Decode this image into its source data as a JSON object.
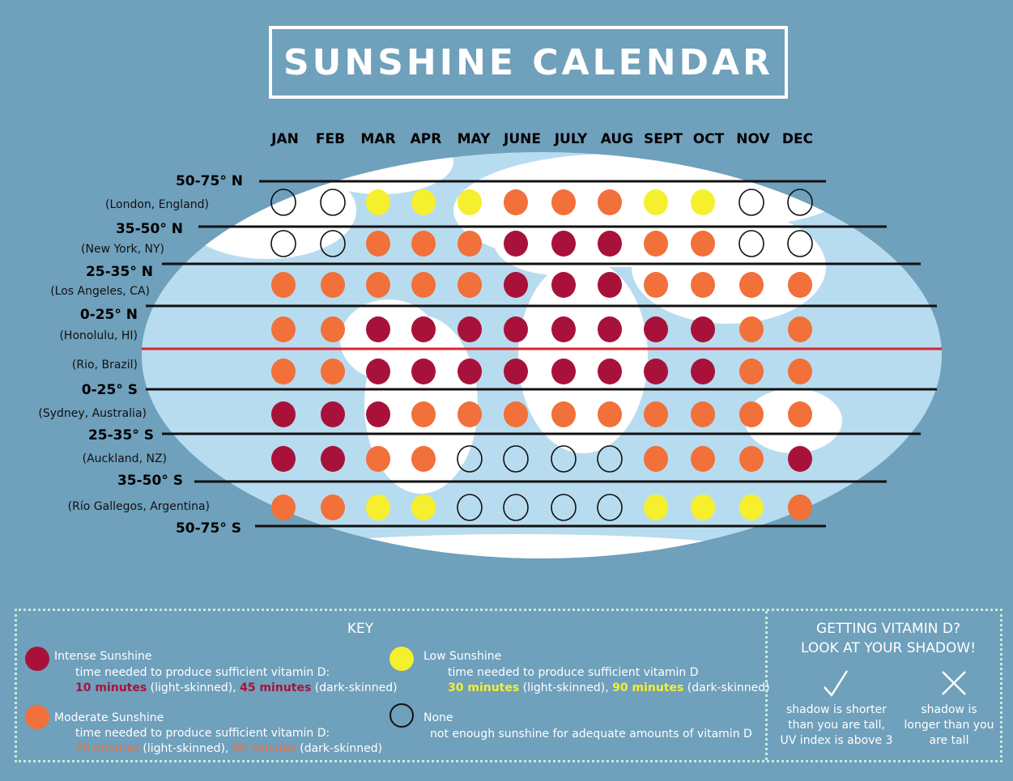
{
  "title": "SUNSHINE CALENDAR",
  "colors": {
    "intense": "#a8123a",
    "moderate": "#f2703a",
    "low": "#f6ef2e",
    "none": "none",
    "background": "#6fa0bc",
    "ocean": "#b8dcef",
    "equator": "#d9232e"
  },
  "chart_data": {
    "type": "heatmap",
    "title": "SUNSHINE CALENDAR",
    "columns": [
      "JAN",
      "FEB",
      "MAR",
      "APR",
      "MAY",
      "JUNE",
      "JULY",
      "AUG",
      "SEPT",
      "OCT",
      "NOV",
      "DEC"
    ],
    "band_labels": [
      "50-75° N",
      "35-50° N",
      "25-35° N",
      "0-25° N",
      "0-25° S",
      "25-35° S",
      "35-50° S",
      "50-75° S"
    ],
    "rows": [
      {
        "city": "(London, England)",
        "values": [
          "none",
          "none",
          "low",
          "low",
          "low",
          "moderate",
          "moderate",
          "moderate",
          "low",
          "low",
          "none",
          "none"
        ]
      },
      {
        "city": "(New York, NY)",
        "values": [
          "none",
          "none",
          "moderate",
          "moderate",
          "moderate",
          "intense",
          "intense",
          "intense",
          "moderate",
          "moderate",
          "none",
          "none"
        ]
      },
      {
        "city": "(Los Angeles, CA)",
        "values": [
          "moderate",
          "moderate",
          "moderate",
          "moderate",
          "moderate",
          "intense",
          "intense",
          "intense",
          "moderate",
          "moderate",
          "moderate",
          "moderate"
        ]
      },
      {
        "city": "(Honolulu, HI)",
        "values": [
          "moderate",
          "moderate",
          "intense",
          "intense",
          "intense",
          "intense",
          "intense",
          "intense",
          "intense",
          "intense",
          "moderate",
          "moderate"
        ]
      },
      {
        "city": "(Rio, Brazil)",
        "values": [
          "moderate",
          "moderate",
          "intense",
          "intense",
          "intense",
          "intense",
          "intense",
          "intense",
          "intense",
          "intense",
          "moderate",
          "moderate"
        ]
      },
      {
        "city": "(Sydney, Australia)",
        "values": [
          "intense",
          "intense",
          "intense",
          "moderate",
          "moderate",
          "moderate",
          "moderate",
          "moderate",
          "moderate",
          "moderate",
          "moderate",
          "moderate"
        ]
      },
      {
        "city": "(Auckland, NZ)",
        "values": [
          "intense",
          "intense",
          "moderate",
          "moderate",
          "none",
          "none",
          "none",
          "none",
          "moderate",
          "moderate",
          "moderate",
          "intense"
        ]
      },
      {
        "city": "(Río Gallegos, Argentina)",
        "values": [
          "moderate",
          "moderate",
          "low",
          "low",
          "none",
          "none",
          "none",
          "none",
          "low",
          "low",
          "low",
          "moderate"
        ]
      }
    ]
  },
  "key": {
    "heading": "KEY",
    "intense": {
      "label": "Intense Sunshine",
      "desc": "time needed to produce sufficient vitamin D:",
      "t1": "10 minutes",
      "m1": " (light-skinned), ",
      "t2": "45 minutes",
      "m2": " (dark-skinned)"
    },
    "moderate": {
      "label": "Moderate Sunshine",
      "desc": "time needed to produce sufficient vitamin D:",
      "t1": "20 minutes",
      "m1": " (light-skinned), ",
      "t2": "60 minutes",
      "m2": " (dark-skinned)"
    },
    "low": {
      "label": "Low Sunshine",
      "desc": "time needed to produce sufficient vitamin D",
      "t1": "30 minutes",
      "m1": " (light-skinned), ",
      "t2": "90 minutes",
      "m2": " (dark-skinned)"
    },
    "none": {
      "label": "None",
      "desc": "not enough sunshine for adequate amounts of vitamin D"
    }
  },
  "shadow": {
    "heading1": "GETTING VITAMIN D?",
    "heading2": "LOOK AT YOUR SHADOW!",
    "check_icon": "check-icon",
    "cross_icon": "x-icon",
    "yes": [
      "shadow is shorter",
      "than you are tall,",
      "UV index is above 3"
    ],
    "no": [
      "shadow is",
      "longer than you",
      "are tall"
    ]
  }
}
